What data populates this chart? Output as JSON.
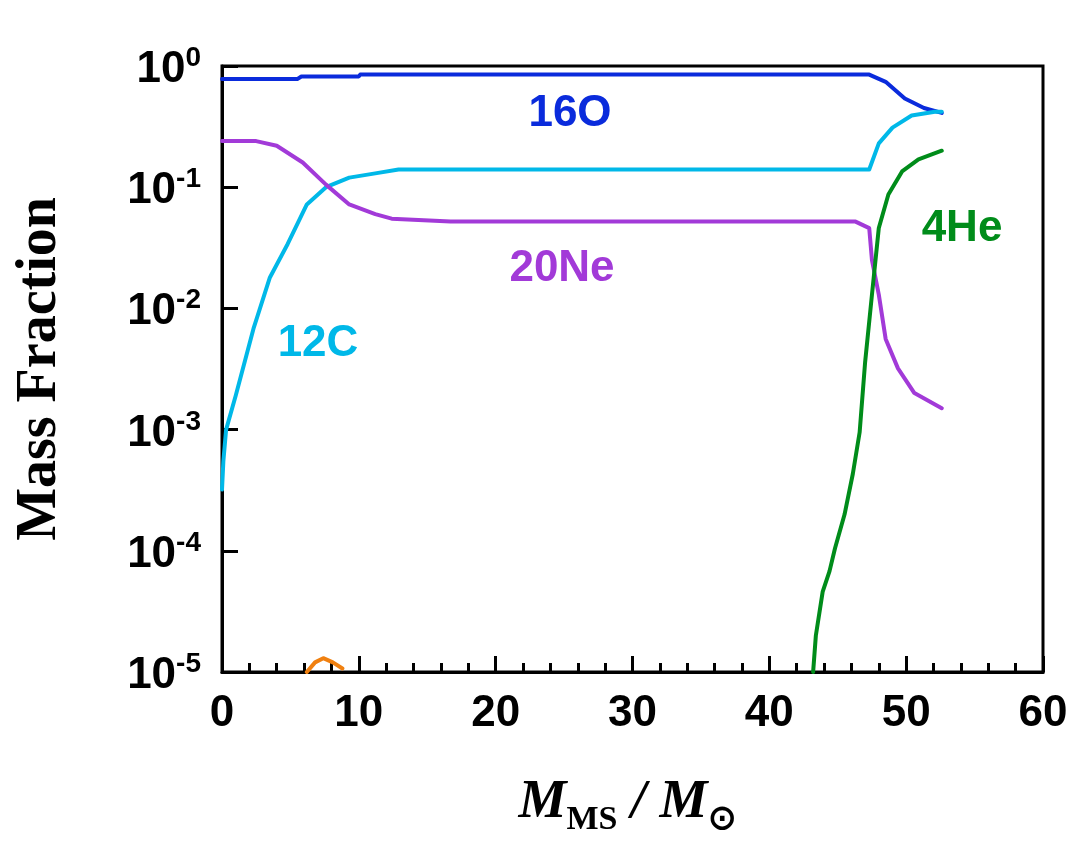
{
  "chart_data": {
    "type": "line",
    "xlabel": "M$_{MS}$ / M$_{⊙}$",
    "ylabel": "Mass Fraction",
    "log": "y",
    "xlim": [
      0,
      60
    ],
    "xticks": [
      0,
      10,
      20,
      30,
      40,
      50,
      60
    ],
    "ylim": [
      1e-05,
      1
    ],
    "yticks": [
      {
        "value": 1,
        "label": "10$^{0}$"
      },
      {
        "value": 0.1,
        "label": "10$^{-1}$"
      },
      {
        "value": 0.01,
        "label": "10$^{-2}$"
      },
      {
        "value": 0.001,
        "label": "10$^{-3}$"
      },
      {
        "value": 0.0001,
        "label": "10$^{-4}$"
      },
      {
        "value": 1e-05,
        "label": "10$^{-5}$"
      }
    ],
    "grid": false,
    "legend": false,
    "marker": "none",
    "line_style": "solid",
    "series": [
      {
        "name": "16O",
        "color": "#0a2bdc",
        "x": [
          0,
          5.5,
          5.8,
          10,
          10.1,
          47.3,
          48.5,
          49.9,
          51.3,
          52.6
        ],
        "values": [
          0.78,
          0.78,
          0.82,
          0.82,
          0.85,
          0.85,
          0.74,
          0.54,
          0.45,
          0.41
        ]
      },
      {
        "name": "12C",
        "color": "#00b8e8",
        "x": [
          0,
          0.1,
          0.3,
          1.0,
          2.3,
          3.5,
          4.8,
          6.2,
          7.6,
          9.3,
          11.2,
          12.9,
          47.3,
          48.0,
          49.0,
          50.4,
          52.1,
          52.6
        ],
        "values": [
          0.00032,
          0.00055,
          0.001,
          0.0019,
          0.0068,
          0.018,
          0.034,
          0.072,
          0.1,
          0.12,
          0.13,
          0.14,
          0.14,
          0.23,
          0.31,
          0.39,
          0.42,
          0.42
        ]
      },
      {
        "name": "20Ne",
        "color": "#a23ad8",
        "x": [
          0,
          2.5,
          4.0,
          5.9,
          7.6,
          9.3,
          11.2,
          12.4,
          16.7,
          46.3,
          47.3,
          47.5,
          48.0,
          48.5,
          49.4,
          50.6,
          52.6
        ],
        "values": [
          0.24,
          0.24,
          0.22,
          0.16,
          0.105,
          0.072,
          0.06,
          0.055,
          0.052,
          0.052,
          0.046,
          0.025,
          0.013,
          0.0056,
          0.0032,
          0.002,
          0.0015
        ]
      },
      {
        "name": "4He",
        "color": "#008c1a",
        "x": [
          43.2,
          43.4,
          43.9,
          44.4,
          44.8,
          45.5,
          46.1,
          46.6,
          47.0,
          47.5,
          48.0,
          48.7,
          49.7,
          50.9,
          52.6
        ],
        "values": [
          1e-05,
          2e-05,
          4.6e-05,
          6.8e-05,
          0.000105,
          0.0002,
          0.00043,
          0.00095,
          0.0036,
          0.013,
          0.046,
          0.087,
          0.135,
          0.17,
          0.2
        ]
      },
      {
        "color": "#f08010",
        "x": [
          6.2,
          6.8,
          7.4,
          8.1,
          8.8
        ],
        "values": [
          1e-05,
          1.2e-05,
          1.3e-05,
          1.2e-05,
          1.07e-05
        ]
      }
    ]
  }
}
